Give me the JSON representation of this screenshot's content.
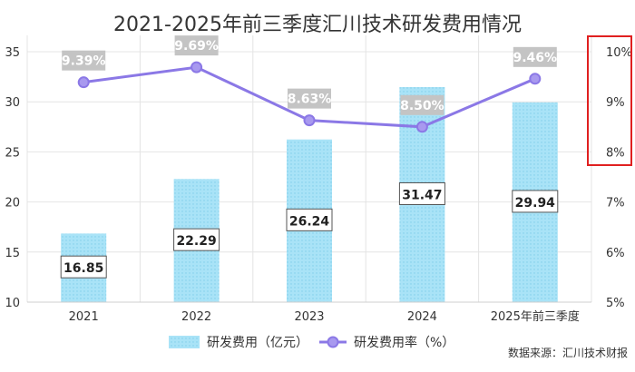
{
  "chart_data": {
    "type": "bar",
    "title": "2021-2025年前三季度汇川技术研发费用情况",
    "categories": [
      "2021",
      "2022",
      "2023",
      "2024",
      "2025年前三季度"
    ],
    "series": [
      {
        "name": "研发费用（亿元）",
        "type": "bar",
        "axis": "left",
        "values": [
          16.85,
          22.29,
          26.24,
          31.47,
          29.94
        ],
        "labels": [
          "16.85",
          "22.29",
          "26.24",
          "31.47",
          "29.94"
        ]
      },
      {
        "name": "研发费用率（%）",
        "type": "line",
        "axis": "right",
        "values": [
          9.39,
          9.69,
          8.63,
          8.5,
          9.46
        ],
        "labels": [
          "9.39%",
          "9.69%",
          "8.63%",
          "8.50%",
          "9.46%"
        ]
      }
    ],
    "y_left": {
      "ylim": [
        10,
        35
      ],
      "ticks": [
        "10",
        "15",
        "20",
        "25",
        "30",
        "35"
      ],
      "tick_values": [
        10,
        15,
        20,
        25,
        30,
        35
      ]
    },
    "y_right": {
      "ylim": [
        5,
        10
      ],
      "ticks": [
        "5%",
        "6%",
        "7%",
        "8%",
        "9%",
        "10%"
      ],
      "tick_values": [
        5,
        6,
        7,
        8,
        9,
        10
      ],
      "highlighted_ticks": [
        "8%",
        "9%",
        "10%"
      ]
    },
    "grid": true,
    "legend_position": "bottom",
    "source_note": "数据来源：汇川技术财报"
  },
  "colors": {
    "bar": "#a9e3f7",
    "bar_dot": "#7fcdea",
    "line": "#8b78e6",
    "marker_fill": "#a899ef",
    "line_label_bg": "#c4c4c4",
    "grid": "#e4e4e4",
    "highlight_box": "#e02020",
    "text": "#333333"
  }
}
